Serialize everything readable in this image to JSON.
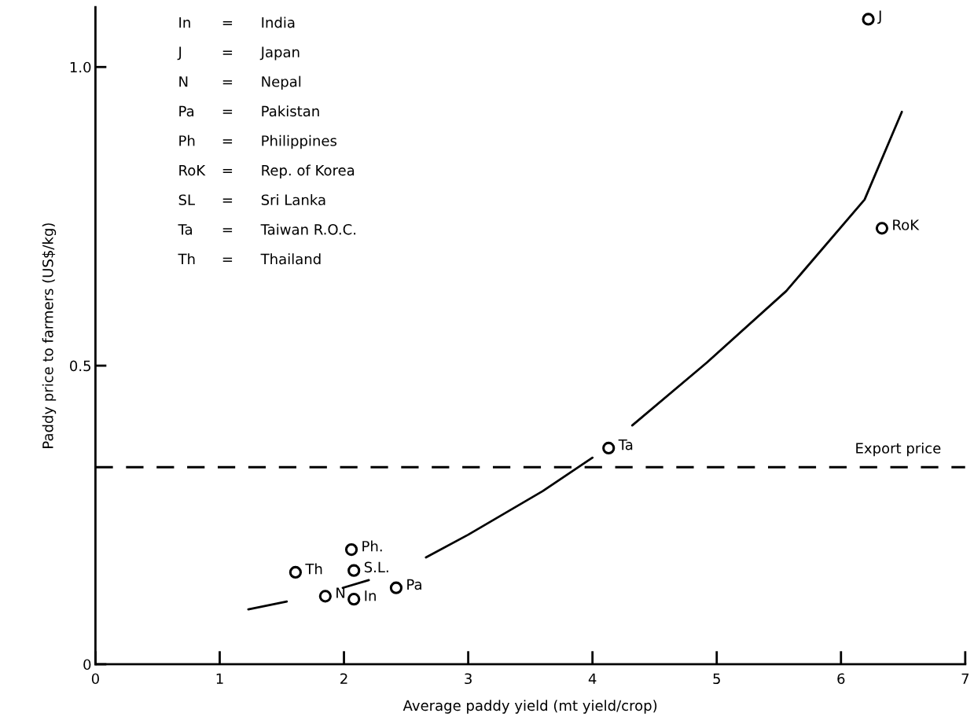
{
  "chart_data": {
    "type": "scatter",
    "xlabel": "Average paddy yield (mt yield/crop)",
    "ylabel": "Paddy price to farmers (US$/kg)",
    "xlim": [
      0,
      7
    ],
    "xticks": [
      0,
      1,
      2,
      3,
      4,
      5,
      6,
      7
    ],
    "ylim": [
      0,
      1.1
    ],
    "yticks": [
      0,
      0.5,
      {
        "value": 1.0,
        "label": "1.0"
      }
    ],
    "grid": false,
    "series": [
      {
        "color": "#000000",
        "marker": "circle",
        "x": [
          6.22,
          6.33,
          4.13,
          2.06,
          1.61,
          2.08,
          1.85,
          2.08,
          2.42
        ],
        "values": [
          1.08,
          0.73,
          0.362,
          0.192,
          0.154,
          0.157,
          0.114,
          0.109,
          0.128
        ]
      },
      {
        "type": "line",
        "color": "#000000",
        "line_style": "solid",
        "x": [
          1.23,
          1.54,
          null,
          1.99,
          2.2,
          null,
          2.66,
          3.0,
          3.6,
          4.0,
          null,
          4.32,
          4.92,
          5.56,
          6.19,
          6.49
        ],
        "values": [
          0.092,
          0.105,
          null,
          0.128,
          0.141,
          null,
          0.179,
          0.217,
          0.29,
          0.346,
          null,
          0.4,
          0.505,
          0.625,
          0.778,
          0.925
        ]
      }
    ],
    "ref_lines": [
      {
        "axis": "y",
        "value": 0.33,
        "label": "Export price",
        "color": "#000000",
        "line_style": "dashed"
      }
    ],
    "annotations": [
      {
        "text": "J",
        "x": 6.22,
        "y": 1.08
      },
      {
        "text": "RoK",
        "x": 6.33,
        "y": 0.73
      },
      {
        "text": "Ta",
        "x": 4.13,
        "y": 0.362
      },
      {
        "text": "Ph.",
        "x": 2.06,
        "y": 0.192
      },
      {
        "text": "Th",
        "x": 1.61,
        "y": 0.154
      },
      {
        "text": "S.L.",
        "x": 2.08,
        "y": 0.157
      },
      {
        "text": "N",
        "x": 1.85,
        "y": 0.114
      },
      {
        "text": "In",
        "x": 2.08,
        "y": 0.109
      },
      {
        "text": "Pa",
        "x": 2.42,
        "y": 0.128
      },
      "In = India",
      "J = Japan",
      "N = Nepal",
      "Pa = Pakistan",
      "Ph = Philippines",
      "RoK = Rep. of Korea",
      "SL = Sri Lanka",
      "Ta = Taiwan R.O.C.",
      "Th = Thailand"
    ]
  }
}
